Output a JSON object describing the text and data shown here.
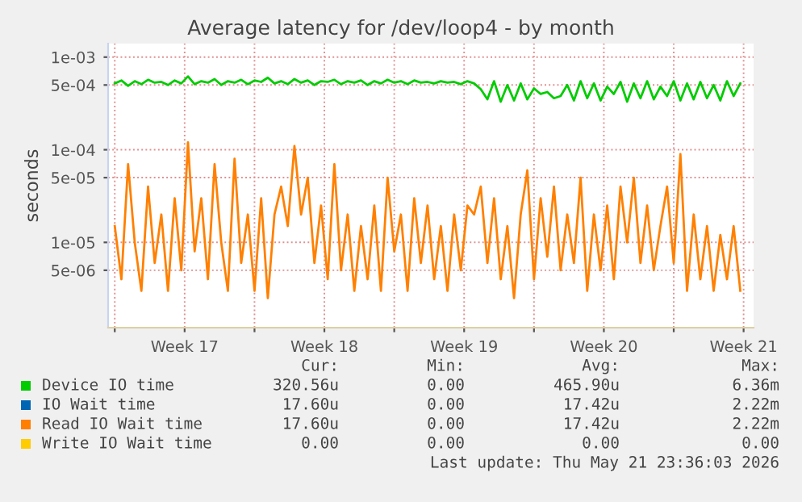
{
  "chart_data": {
    "type": "line",
    "title": "Average latency for /dev/loop4 - by month",
    "ylabel": "seconds",
    "log": "y",
    "grid": true,
    "legend": "bottom",
    "marker": "none",
    "line_style": "solid",
    "ylim": [
      1.2e-06,
      0.0014
    ],
    "yticks": [
      {
        "value": 0.001,
        "label": "1e-03"
      },
      {
        "value": 0.0005,
        "label": "5e-04"
      },
      {
        "value": 0.0001,
        "label": "1e-04"
      },
      {
        "value": 5e-05,
        "label": "5e-05"
      },
      {
        "value": 1e-05,
        "label": "1e-05"
      },
      {
        "value": 5e-06,
        "label": "5e-06"
      }
    ],
    "xlim": [
      "2026-04-19T16:00",
      "2026-05-22T00:00"
    ],
    "xticks": [
      {
        "value": "2026-04-20T00:00",
        "label": null
      },
      {
        "value": "2026-04-23T12:00",
        "label": "Week 17"
      },
      {
        "value": "2026-04-27T00:00",
        "label": null
      },
      {
        "value": "2026-04-30T12:00",
        "label": "Week 18"
      },
      {
        "value": "2026-05-04T00:00",
        "label": null
      },
      {
        "value": "2026-05-07T12:00",
        "label": "Week 19"
      },
      {
        "value": "2026-05-11T00:00",
        "label": null
      },
      {
        "value": "2026-05-14T12:00",
        "label": "Week 20"
      },
      {
        "value": "2026-05-18T00:00",
        "label": null
      },
      {
        "value": "2026-05-21T12:00",
        "label": "Week 21"
      }
    ],
    "x": [
      "2026-04-20T00:00",
      "2026-04-20T08:00",
      "2026-04-20T16:00",
      "2026-04-21T00:00",
      "2026-04-21T08:00",
      "2026-04-21T16:00",
      "2026-04-22T00:00",
      "2026-04-22T08:00",
      "2026-04-22T16:00",
      "2026-04-23T00:00",
      "2026-04-23T08:00",
      "2026-04-23T16:00",
      "2026-04-24T00:00",
      "2026-04-24T08:00",
      "2026-04-24T16:00",
      "2026-04-25T00:00",
      "2026-04-25T08:00",
      "2026-04-25T16:00",
      "2026-04-26T00:00",
      "2026-04-26T08:00",
      "2026-04-26T16:00",
      "2026-04-27T00:00",
      "2026-04-27T08:00",
      "2026-04-27T16:00",
      "2026-04-28T00:00",
      "2026-04-28T08:00",
      "2026-04-28T16:00",
      "2026-04-29T00:00",
      "2026-04-29T08:00",
      "2026-04-29T16:00",
      "2026-04-30T00:00",
      "2026-04-30T08:00",
      "2026-04-30T16:00",
      "2026-05-01T00:00",
      "2026-05-01T08:00",
      "2026-05-01T16:00",
      "2026-05-02T00:00",
      "2026-05-02T08:00",
      "2026-05-02T16:00",
      "2026-05-03T00:00",
      "2026-05-03T08:00",
      "2026-05-03T16:00",
      "2026-05-04T00:00",
      "2026-05-04T08:00",
      "2026-05-04T16:00",
      "2026-05-05T00:00",
      "2026-05-05T08:00",
      "2026-05-05T16:00",
      "2026-05-06T00:00",
      "2026-05-06T08:00",
      "2026-05-06T16:00",
      "2026-05-07T00:00",
      "2026-05-07T08:00",
      "2026-05-07T16:00",
      "2026-05-08T00:00",
      "2026-05-08T08:00",
      "2026-05-08T16:00",
      "2026-05-09T00:00",
      "2026-05-09T08:00",
      "2026-05-09T16:00",
      "2026-05-10T00:00",
      "2026-05-10T08:00",
      "2026-05-10T16:00",
      "2026-05-11T00:00",
      "2026-05-11T08:00",
      "2026-05-11T16:00",
      "2026-05-12T00:00",
      "2026-05-12T08:00",
      "2026-05-12T16:00",
      "2026-05-13T00:00",
      "2026-05-13T08:00",
      "2026-05-13T16:00",
      "2026-05-14T00:00",
      "2026-05-14T08:00",
      "2026-05-14T16:00",
      "2026-05-15T00:00",
      "2026-05-15T08:00",
      "2026-05-15T16:00",
      "2026-05-16T00:00",
      "2026-05-16T08:00",
      "2026-05-16T16:00",
      "2026-05-17T00:00",
      "2026-05-17T08:00",
      "2026-05-17T16:00",
      "2026-05-18T00:00",
      "2026-05-18T08:00",
      "2026-05-18T16:00",
      "2026-05-19T00:00",
      "2026-05-19T08:00",
      "2026-05-19T16:00",
      "2026-05-20T00:00",
      "2026-05-20T08:00",
      "2026-05-20T16:00",
      "2026-05-21T00:00",
      "2026-05-21T08:00"
    ],
    "series": [
      {
        "name": "Device IO time",
        "color": "#00cc00",
        "values": [
          0.00052,
          0.00056,
          0.00049,
          0.00055,
          0.00051,
          0.00057,
          0.00053,
          0.00054,
          0.0005,
          0.00056,
          0.00052,
          0.00062,
          0.00051,
          0.00055,
          0.00053,
          0.00058,
          0.0005,
          0.00055,
          0.00053,
          0.00057,
          0.00051,
          0.00056,
          0.00054,
          0.0006,
          0.00052,
          0.00055,
          0.00051,
          0.00058,
          0.00053,
          0.00056,
          0.0005,
          0.00055,
          0.00054,
          0.00057,
          0.00051,
          0.00055,
          0.00053,
          0.00056,
          0.0005,
          0.00055,
          0.00052,
          0.00057,
          0.00053,
          0.00055,
          0.00051,
          0.00056,
          0.00053,
          0.00054,
          0.00052,
          0.00055,
          0.00053,
          0.00054,
          0.00051,
          0.00055,
          0.00052,
          0.00045,
          0.00035,
          0.00055,
          0.00033,
          0.0005,
          0.00034,
          0.00052,
          0.00035,
          0.00046,
          0.0004,
          0.00042,
          0.00036,
          0.00038,
          0.0005,
          0.00034,
          0.00055,
          0.00036,
          0.00052,
          0.00034,
          0.00048,
          0.0004,
          0.00054,
          0.00033,
          0.00052,
          0.00036,
          0.00055,
          0.00035,
          0.00048,
          0.00038,
          0.00055,
          0.00034,
          0.00052,
          0.00035,
          0.00054,
          0.00036,
          0.0005,
          0.00034,
          0.00055,
          0.00038,
          0.00052
        ]
      },
      {
        "name": "IO Wait time",
        "color": "#0066b3",
        "values": [
          null,
          null,
          null,
          null,
          null,
          null,
          null,
          null,
          null,
          null,
          null,
          null,
          null,
          null,
          null,
          null,
          null,
          null,
          null,
          null,
          null,
          null,
          null,
          null,
          null,
          null,
          null,
          null,
          null,
          null,
          null,
          null,
          null,
          null,
          null,
          null,
          null,
          null,
          null,
          null,
          null,
          null,
          null,
          null,
          null,
          null,
          null,
          null,
          null,
          null,
          null,
          null,
          null,
          null,
          null,
          null,
          null,
          null,
          null,
          null,
          null,
          null,
          null,
          null,
          null,
          null,
          null,
          null,
          null,
          null,
          null,
          null,
          null,
          null,
          null,
          null,
          null,
          null,
          null,
          null,
          null,
          null,
          null,
          null,
          null,
          null,
          null,
          null,
          null,
          null,
          null,
          null,
          null,
          null,
          null
        ]
      },
      {
        "name": "Read IO Wait time",
        "color": "#ff8000",
        "values": [
          1.5e-05,
          4e-06,
          7e-05,
          1e-05,
          3e-06,
          4e-05,
          6e-06,
          2e-05,
          3e-06,
          3e-05,
          5e-06,
          0.00012,
          8e-06,
          3e-05,
          4e-06,
          7e-05,
          1e-05,
          3e-06,
          8e-05,
          6e-06,
          2e-05,
          3e-06,
          3e-05,
          2.5e-06,
          2e-05,
          4e-05,
          1.5e-05,
          0.00011,
          2e-05,
          5e-05,
          6e-06,
          2.5e-05,
          4e-06,
          7e-05,
          5e-06,
          2e-05,
          3e-06,
          1.5e-05,
          4e-06,
          2.5e-05,
          3e-06,
          5e-05,
          8e-06,
          2e-05,
          3e-06,
          3e-05,
          6e-06,
          2.5e-05,
          4e-06,
          1.5e-05,
          3e-06,
          2e-05,
          5e-06,
          2.5e-05,
          2e-05,
          4e-05,
          6e-06,
          3e-05,
          4e-06,
          1.5e-05,
          2.5e-06,
          2e-05,
          6e-05,
          4e-06,
          3e-05,
          7e-06,
          4e-05,
          5e-06,
          2e-05,
          6e-06,
          5e-05,
          3e-06,
          2e-05,
          5e-06,
          2.5e-05,
          4e-06,
          4e-05,
          1e-05,
          5e-05,
          6e-06,
          2.5e-05,
          5e-06,
          1.5e-05,
          4e-05,
          6e-06,
          9e-05,
          3e-06,
          2e-05,
          4e-06,
          1.5e-05,
          3e-06,
          1.2e-05,
          4e-06,
          1.5e-05,
          3e-06
        ]
      },
      {
        "name": "Write IO Wait time",
        "color": "#ffcc00",
        "values": [
          null,
          null,
          null,
          null,
          null,
          null,
          null,
          null,
          null,
          null,
          null,
          null,
          null,
          null,
          null,
          null,
          null,
          null,
          null,
          null,
          null,
          null,
          null,
          null,
          null,
          null,
          null,
          null,
          null,
          null,
          null,
          null,
          null,
          null,
          null,
          null,
          null,
          null,
          null,
          null,
          null,
          null,
          null,
          null,
          null,
          null,
          null,
          null,
          null,
          null,
          null,
          null,
          null,
          null,
          null,
          null,
          null,
          null,
          null,
          null,
          null,
          null,
          null,
          null,
          null,
          null,
          null,
          null,
          null,
          null,
          null,
          null,
          null,
          null,
          null,
          null,
          null,
          null,
          null,
          null,
          null,
          null,
          null,
          null,
          null,
          null,
          null,
          null,
          null,
          null,
          null,
          null,
          null,
          null,
          null
        ]
      }
    ],
    "annotations": [
      "Cur:",
      "Min:",
      "Avg:",
      "Max:",
      "320.56u",
      "0.00",
      "465.90u",
      "6.36m",
      "17.60u",
      "0.00",
      "17.42u",
      "2.22m",
      "17.60u",
      "0.00",
      "17.42u",
      "2.22m",
      "0.00",
      "0.00",
      "0.00",
      "0.00",
      "Last update: Thu May 21 23:36:03 2026"
    ]
  }
}
